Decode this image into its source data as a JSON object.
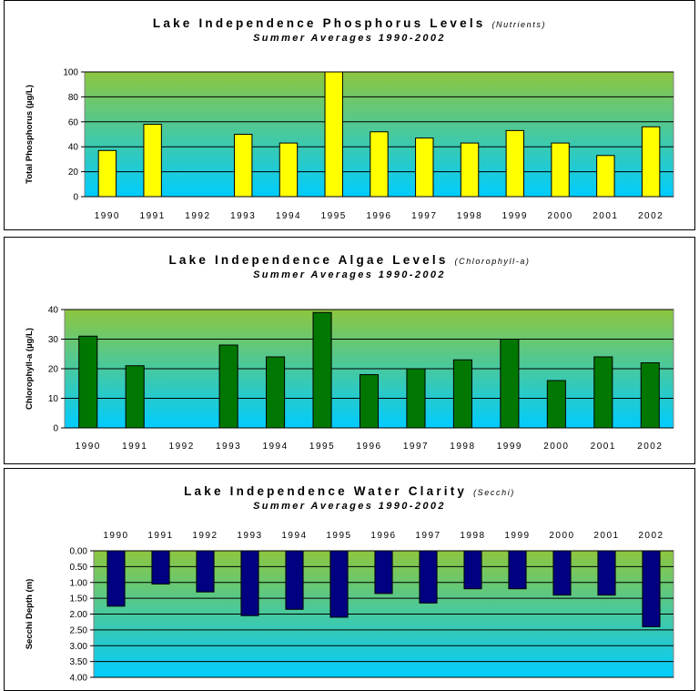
{
  "colors": {
    "bg_top": "#8ec63f",
    "bg_bottom": "#00ccff",
    "bar_yellow": "#ffff00",
    "bar_green": "#007700",
    "bar_navy": "#000080"
  },
  "chart_data": [
    {
      "type": "bar",
      "title": "Lake Independence Phosphorus Levels",
      "title_sub": "(Nutrients)",
      "subtitle": "Summer Averages 1990-2002",
      "ylabel": "Total Phosphorus (µg/L)",
      "categories": [
        "1990",
        "1991",
        "1992",
        "1993",
        "1994",
        "1995",
        "1996",
        "1997",
        "1998",
        "1999",
        "2000",
        "2001",
        "2002"
      ],
      "values": [
        37,
        58,
        null,
        50,
        43,
        100,
        52,
        47,
        43,
        53,
        43,
        33,
        56
      ],
      "ylim": [
        0,
        100
      ],
      "yticks": [
        "0",
        "20",
        "40",
        "60",
        "80",
        "100"
      ],
      "tick_values": [
        0,
        20,
        40,
        60,
        80,
        100
      ],
      "bar_color": "#ffff00",
      "inverted": false,
      "grid": true
    },
    {
      "type": "bar",
      "title": "Lake Independence Algae Levels",
      "title_sub": "(Chlorophyll-a)",
      "subtitle": "Summer Averages 1990-2002",
      "ylabel": "Chlorophyll-a (µg/L)",
      "categories": [
        "1990",
        "1991",
        "1992",
        "1993",
        "1994",
        "1995",
        "1996",
        "1997",
        "1998",
        "1999",
        "2000",
        "2001",
        "2002"
      ],
      "values": [
        31,
        21,
        null,
        28,
        24,
        39,
        18,
        20,
        23,
        30,
        16,
        24,
        22
      ],
      "ylim": [
        0,
        40
      ],
      "yticks": [
        "0",
        "10",
        "20",
        "30",
        "40"
      ],
      "tick_values": [
        0,
        10,
        20,
        30,
        40
      ],
      "bar_color": "#007700",
      "inverted": false,
      "grid": true
    },
    {
      "type": "bar",
      "title": "Lake Independence Water Clarity",
      "title_sub": "(Secchi)",
      "subtitle": "Summer Averages 1990-2002",
      "ylabel": "Secchi Depth (m)",
      "categories": [
        "1990",
        "1991",
        "1992",
        "1993",
        "1994",
        "1995",
        "1996",
        "1997",
        "1998",
        "1999",
        "2000",
        "2001",
        "2002"
      ],
      "values": [
        1.75,
        1.05,
        1.3,
        2.05,
        1.85,
        2.1,
        1.35,
        1.65,
        1.2,
        1.2,
        1.4,
        1.4,
        2.4
      ],
      "ylim": [
        0,
        4
      ],
      "yticks": [
        "0.00",
        "0.50",
        "1.00",
        "1.50",
        "2.00",
        "2.50",
        "3.00",
        "3.50",
        "4.00"
      ],
      "tick_values": [
        0,
        0.5,
        1,
        1.5,
        2,
        2.5,
        3,
        3.5,
        4
      ],
      "bar_color": "#000080",
      "inverted": true,
      "grid": true
    }
  ]
}
